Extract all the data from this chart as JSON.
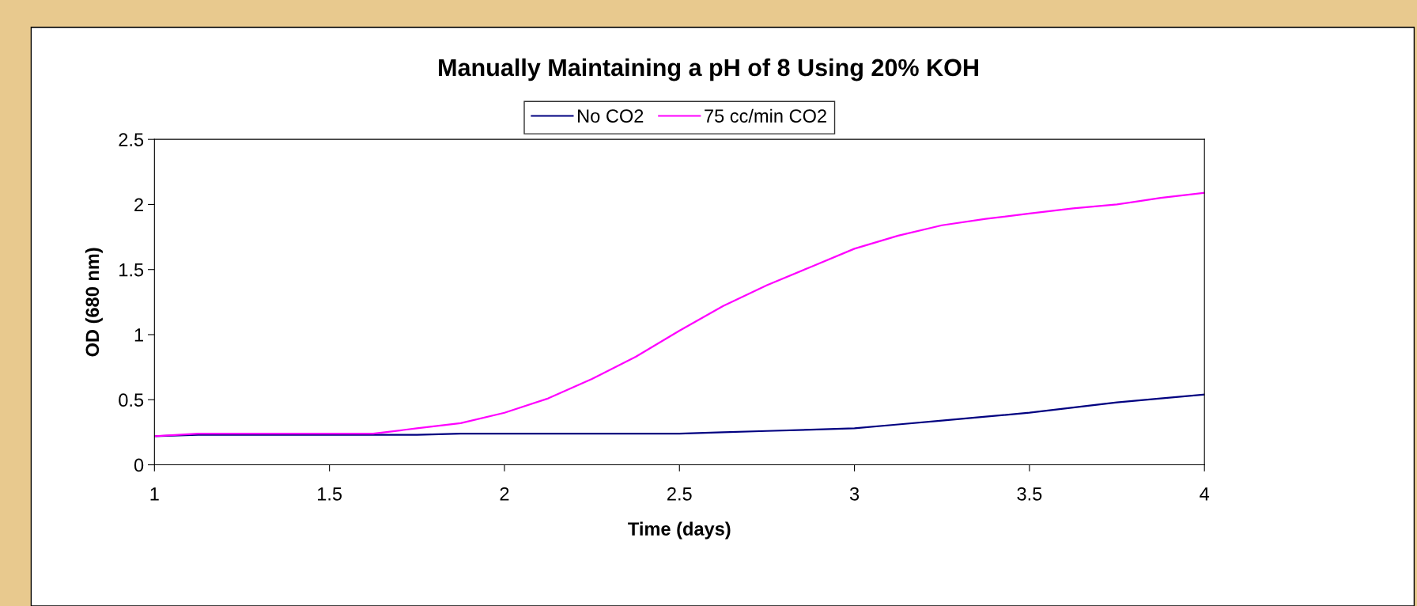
{
  "chart_data": {
    "type": "line",
    "title": "Manually Maintaining a pH of 8 Using 20% KOH",
    "xlabel": "Time (days)",
    "ylabel": "OD (680 nm)",
    "x": [
      1,
      1.125,
      1.25,
      1.375,
      1.5,
      1.625,
      1.75,
      1.875,
      2,
      2.125,
      2.25,
      2.375,
      2.5,
      2.625,
      2.75,
      2.875,
      3,
      3.125,
      3.25,
      3.375,
      3.5,
      3.625,
      3.75,
      3.875,
      4
    ],
    "series": [
      {
        "name": "No CO2",
        "color": "#000080",
        "values": [
          0.22,
          0.23,
          0.23,
          0.23,
          0.23,
          0.23,
          0.23,
          0.24,
          0.24,
          0.24,
          0.24,
          0.24,
          0.24,
          0.25,
          0.26,
          0.27,
          0.28,
          0.31,
          0.34,
          0.37,
          0.4,
          0.44,
          0.48,
          0.51,
          0.54
        ]
      },
      {
        "name": "75 cc/min CO2",
        "color": "#ff00ff",
        "values": [
          0.22,
          0.24,
          0.24,
          0.24,
          0.24,
          0.24,
          0.28,
          0.32,
          0.4,
          0.51,
          0.66,
          0.83,
          1.03,
          1.22,
          1.38,
          1.52,
          1.66,
          1.76,
          1.84,
          1.89,
          1.93,
          1.97,
          2.0,
          2.05,
          2.09
        ]
      }
    ],
    "xlim": [
      1,
      4
    ],
    "xticks": [
      1,
      1.5,
      2,
      2.5,
      3,
      3.5,
      4
    ],
    "ylim": [
      0,
      2.5
    ],
    "yticks": [
      0,
      0.5,
      1,
      1.5,
      2,
      2.5
    ],
    "grid": false,
    "legend": "top",
    "marker": "none",
    "line_style": "solid"
  }
}
